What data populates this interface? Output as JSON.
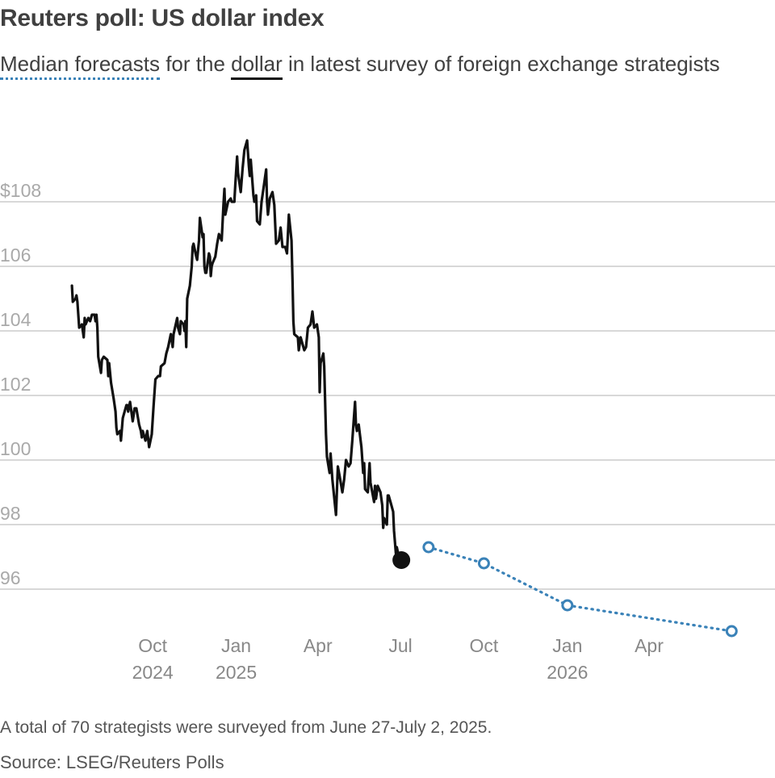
{
  "header": {
    "title": "Reuters poll: US dollar index",
    "subtitle_pre": "",
    "subtitle_key_forecast": "Median forecasts",
    "subtitle_mid": " for the ",
    "subtitle_key_dollar": "dollar",
    "subtitle_post": " in latest survey of foreign exchange strategists"
  },
  "footer": {
    "note": "A total of 70 strategists were surveyed from June 27-July 2, 2025.",
    "source": "Source: LSEG/Reuters Polls"
  },
  "chart_data": {
    "type": "line",
    "title": "Reuters poll: US dollar index",
    "ylim": [
      94.5,
      110.5
    ],
    "yticks": [
      {
        "value": 96,
        "label": "96"
      },
      {
        "value": 98,
        "label": "98"
      },
      {
        "value": 100,
        "label": "100"
      },
      {
        "value": 102,
        "label": "102"
      },
      {
        "value": 104,
        "label": "104"
      },
      {
        "value": 106,
        "label": "106"
      },
      {
        "value": 108,
        "label": "$108"
      }
    ],
    "xlim": [
      "2024-07-03",
      "2026-07-31"
    ],
    "xticks": [
      {
        "date": "2024-10-01",
        "label": "Oct",
        "sublabel": "2024"
      },
      {
        "date": "2025-01-01",
        "label": "Jan",
        "sublabel": "2025"
      },
      {
        "date": "2025-04-01",
        "label": "Apr",
        "sublabel": ""
      },
      {
        "date": "2025-07-01",
        "label": "Jul",
        "sublabel": ""
      },
      {
        "date": "2025-10-01",
        "label": "Oct",
        "sublabel": ""
      },
      {
        "date": "2026-01-01",
        "label": "Jan",
        "sublabel": "2026"
      },
      {
        "date": "2026-04-01",
        "label": "Apr",
        "sublabel": ""
      }
    ],
    "grid": true,
    "series": [
      {
        "name": "dollar",
        "style": "solid",
        "color": "#111111",
        "points": [
          [
            "2024-07-04",
            105.4
          ],
          [
            "2024-07-05",
            104.9
          ],
          [
            "2024-07-08",
            105.0
          ],
          [
            "2024-07-09",
            105.1
          ],
          [
            "2024-07-10",
            104.9
          ],
          [
            "2024-07-12",
            104.1
          ],
          [
            "2024-07-15",
            104.2
          ],
          [
            "2024-07-17",
            103.8
          ],
          [
            "2024-07-18",
            104.4
          ],
          [
            "2024-07-19",
            104.2
          ],
          [
            "2024-07-22",
            104.4
          ],
          [
            "2024-07-24",
            104.3
          ],
          [
            "2024-07-26",
            104.5
          ],
          [
            "2024-07-29",
            104.5
          ],
          [
            "2024-07-30",
            104.3
          ],
          [
            "2024-07-31",
            104.5
          ],
          [
            "2024-08-01",
            104.1
          ],
          [
            "2024-08-02",
            103.2
          ],
          [
            "2024-08-05",
            102.7
          ],
          [
            "2024-08-06",
            103.1
          ],
          [
            "2024-08-08",
            103.2
          ],
          [
            "2024-08-12",
            103.1
          ],
          [
            "2024-08-13",
            102.6
          ],
          [
            "2024-08-14",
            103.0
          ],
          [
            "2024-08-16",
            102.4
          ],
          [
            "2024-08-19",
            101.9
          ],
          [
            "2024-08-21",
            101.5
          ],
          [
            "2024-08-22",
            101.0
          ],
          [
            "2024-08-23",
            100.8
          ],
          [
            "2024-08-26",
            100.9
          ],
          [
            "2024-08-27",
            100.6
          ],
          [
            "2024-08-29",
            101.3
          ],
          [
            "2024-09-02",
            101.7
          ],
          [
            "2024-09-03",
            101.7
          ],
          [
            "2024-09-04",
            101.5
          ],
          [
            "2024-09-06",
            101.8
          ],
          [
            "2024-09-09",
            101.2
          ],
          [
            "2024-09-11",
            101.6
          ],
          [
            "2024-09-13",
            101.6
          ],
          [
            "2024-09-16",
            101.1
          ],
          [
            "2024-09-18",
            100.9
          ],
          [
            "2024-09-19",
            100.7
          ],
          [
            "2024-09-20",
            100.9
          ],
          [
            "2024-09-23",
            100.6
          ],
          [
            "2024-09-25",
            100.9
          ],
          [
            "2024-09-27",
            100.4
          ],
          [
            "2024-09-30",
            100.8
          ],
          [
            "2024-10-02",
            101.7
          ],
          [
            "2024-10-04",
            102.5
          ],
          [
            "2024-10-07",
            102.6
          ],
          [
            "2024-10-09",
            102.6
          ],
          [
            "2024-10-10",
            102.9
          ],
          [
            "2024-10-14",
            103.0
          ],
          [
            "2024-10-16",
            103.3
          ],
          [
            "2024-10-18",
            103.5
          ],
          [
            "2024-10-21",
            103.9
          ],
          [
            "2024-10-23",
            103.5
          ],
          [
            "2024-10-24",
            103.9
          ],
          [
            "2024-10-28",
            104.4
          ],
          [
            "2024-10-29",
            104.1
          ],
          [
            "2024-10-31",
            103.9
          ],
          [
            "2024-11-01",
            104.3
          ],
          [
            "2024-11-04",
            104.2
          ],
          [
            "2024-11-05",
            104.0
          ],
          [
            "2024-11-06",
            104.3
          ],
          [
            "2024-11-07",
            103.5
          ],
          [
            "2024-11-08",
            105.0
          ],
          [
            "2024-11-11",
            105.4
          ],
          [
            "2024-11-13",
            106.0
          ],
          [
            "2024-11-14",
            106.6
          ],
          [
            "2024-11-15",
            106.7
          ],
          [
            "2024-11-18",
            106.3
          ],
          [
            "2024-11-19",
            106.2
          ],
          [
            "2024-11-21",
            106.8
          ],
          [
            "2024-11-22",
            107.5
          ],
          [
            "2024-11-25",
            106.9
          ],
          [
            "2024-11-26",
            107.0
          ],
          [
            "2024-11-27",
            106.0
          ],
          [
            "2024-11-28",
            105.8
          ],
          [
            "2024-11-29",
            105.8
          ],
          [
            "2024-12-02",
            106.4
          ],
          [
            "2024-12-03",
            106.3
          ],
          [
            "2024-12-04",
            105.7
          ],
          [
            "2024-12-05",
            106.0
          ],
          [
            "2024-12-06",
            106.1
          ],
          [
            "2024-12-09",
            106.3
          ],
          [
            "2024-12-11",
            106.7
          ],
          [
            "2024-12-13",
            107.0
          ],
          [
            "2024-12-16",
            106.8
          ],
          [
            "2024-12-18",
            107.9
          ],
          [
            "2024-12-19",
            108.4
          ],
          [
            "2024-12-20",
            107.6
          ],
          [
            "2024-12-23",
            108.0
          ],
          [
            "2024-12-26",
            108.1
          ],
          [
            "2024-12-27",
            108.0
          ],
          [
            "2024-12-30",
            108.0
          ],
          [
            "2024-12-31",
            108.5
          ],
          [
            "2025-01-02",
            109.4
          ],
          [
            "2025-01-03",
            108.9
          ],
          [
            "2025-01-06",
            108.3
          ],
          [
            "2025-01-08",
            109.0
          ],
          [
            "2025-01-10",
            109.6
          ],
          [
            "2025-01-13",
            109.9
          ],
          [
            "2025-01-15",
            109.1
          ],
          [
            "2025-01-16",
            108.8
          ],
          [
            "2025-01-17",
            109.3
          ],
          [
            "2025-01-20",
            108.2
          ],
          [
            "2025-01-21",
            108.0
          ],
          [
            "2025-01-23",
            108.2
          ],
          [
            "2025-01-24",
            107.4
          ],
          [
            "2025-01-27",
            107.3
          ],
          [
            "2025-01-29",
            108.0
          ],
          [
            "2025-01-31",
            108.4
          ],
          [
            "2025-02-03",
            109.0
          ],
          [
            "2025-02-04",
            108.0
          ],
          [
            "2025-02-05",
            107.6
          ],
          [
            "2025-02-07",
            108.1
          ],
          [
            "2025-02-10",
            108.3
          ],
          [
            "2025-02-12",
            107.9
          ],
          [
            "2025-02-14",
            106.7
          ],
          [
            "2025-02-17",
            106.8
          ],
          [
            "2025-02-19",
            107.2
          ],
          [
            "2025-02-21",
            106.6
          ],
          [
            "2025-02-24",
            106.6
          ],
          [
            "2025-02-26",
            106.4
          ],
          [
            "2025-02-28",
            107.6
          ],
          [
            "2025-03-03",
            106.8
          ],
          [
            "2025-03-04",
            105.6
          ],
          [
            "2025-03-05",
            104.3
          ],
          [
            "2025-03-06",
            103.9
          ],
          [
            "2025-03-10",
            103.8
          ],
          [
            "2025-03-11",
            103.4
          ],
          [
            "2025-03-13",
            103.8
          ],
          [
            "2025-03-17",
            103.4
          ],
          [
            "2025-03-19",
            103.5
          ],
          [
            "2025-03-21",
            104.1
          ],
          [
            "2025-03-24",
            104.2
          ],
          [
            "2025-03-26",
            104.6
          ],
          [
            "2025-03-28",
            104.1
          ],
          [
            "2025-03-31",
            104.2
          ],
          [
            "2025-04-02",
            103.8
          ],
          [
            "2025-04-03",
            102.1
          ],
          [
            "2025-04-04",
            103.0
          ],
          [
            "2025-04-07",
            103.3
          ],
          [
            "2025-04-08",
            102.9
          ],
          [
            "2025-04-10",
            100.8
          ],
          [
            "2025-04-11",
            100.1
          ],
          [
            "2025-04-14",
            99.6
          ],
          [
            "2025-04-15",
            100.2
          ],
          [
            "2025-04-17",
            99.4
          ],
          [
            "2025-04-21",
            98.3
          ],
          [
            "2025-04-23",
            99.8
          ],
          [
            "2025-04-25",
            99.5
          ],
          [
            "2025-04-28",
            99.0
          ],
          [
            "2025-04-30",
            99.4
          ],
          [
            "2025-05-02",
            100.0
          ],
          [
            "2025-05-05",
            99.8
          ],
          [
            "2025-05-07",
            99.9
          ],
          [
            "2025-05-09",
            100.6
          ],
          [
            "2025-05-12",
            101.8
          ],
          [
            "2025-05-13",
            101.1
          ],
          [
            "2025-05-14",
            100.9
          ],
          [
            "2025-05-16",
            101.1
          ],
          [
            "2025-05-19",
            100.4
          ],
          [
            "2025-05-21",
            99.6
          ],
          [
            "2025-05-22",
            99.9
          ],
          [
            "2025-05-23",
            99.1
          ],
          [
            "2025-05-26",
            99.0
          ],
          [
            "2025-05-28",
            99.9
          ],
          [
            "2025-05-29",
            99.3
          ],
          [
            "2025-06-02",
            98.7
          ],
          [
            "2025-06-03",
            99.2
          ],
          [
            "2025-06-04",
            98.8
          ],
          [
            "2025-06-06",
            99.2
          ],
          [
            "2025-06-09",
            99.0
          ],
          [
            "2025-06-11",
            98.6
          ],
          [
            "2025-06-12",
            97.9
          ],
          [
            "2025-06-13",
            98.2
          ],
          [
            "2025-06-16",
            98.0
          ],
          [
            "2025-06-17",
            98.9
          ],
          [
            "2025-06-18",
            98.9
          ],
          [
            "2025-06-20",
            98.7
          ],
          [
            "2025-06-23",
            98.4
          ],
          [
            "2025-06-24",
            97.8
          ],
          [
            "2025-06-26",
            97.1
          ],
          [
            "2025-06-27",
            97.3
          ],
          [
            "2025-06-30",
            96.9
          ],
          [
            "2025-07-02",
            96.9
          ]
        ]
      },
      {
        "name": "Median forecasts",
        "style": "dotted",
        "color": "#3a82b8",
        "points": [
          [
            "2025-08-01",
            97.3
          ],
          [
            "2025-10-01",
            96.8
          ],
          [
            "2026-01-01",
            95.5
          ],
          [
            "2026-07-01",
            94.7
          ]
        ]
      }
    ],
    "latest": {
      "date": "2025-07-02",
      "value": 96.9
    }
  }
}
